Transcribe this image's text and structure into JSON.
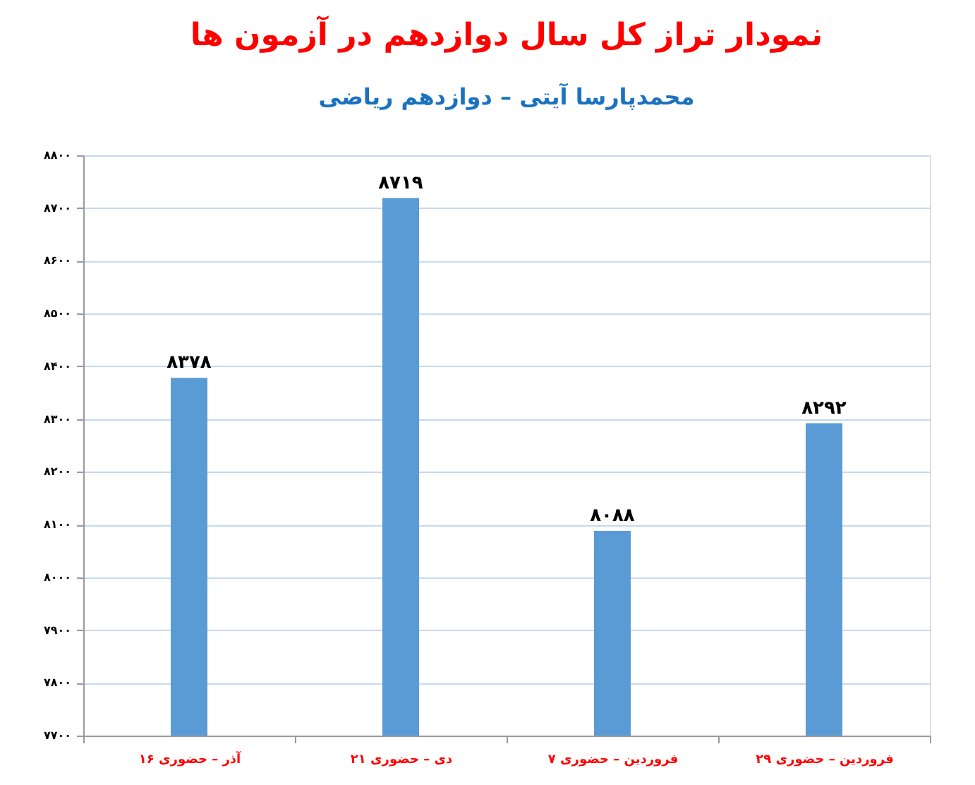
{
  "chart_data": {
    "type": "bar",
    "title": "نمودار تراز کل سال دوازدهم در آزمون ها",
    "subtitle": "محمدپارسا آیتی – دوازدهم ریاضی",
    "categories": [
      "۱۶ آذر – حضوری",
      "۲۱ دی – حضوری",
      "۷ فروردین – حضوری",
      "۲۹ فروردین – حضوری"
    ],
    "values": [
      8378,
      8719,
      8088,
      8292
    ],
    "color": "#5b9bd5",
    "value_labels": [
      "۸۳۷۸",
      "۸۷۱۹",
      "۸۰۸۸",
      "۸۲۹۲"
    ],
    "ylim": [
      7700,
      8800
    ],
    "yticks": [
      {
        "value": 7700,
        "label": "۷۷۰۰"
      },
      {
        "value": 7800,
        "label": "۷۸۰۰"
      },
      {
        "value": 7900,
        "label": "۷۹۰۰"
      },
      {
        "value": 8000,
        "label": "۸۰۰۰"
      },
      {
        "value": 8100,
        "label": "۸۱۰۰"
      },
      {
        "value": 8200,
        "label": "۸۲۰۰"
      },
      {
        "value": 8300,
        "label": "۸۳۰۰"
      },
      {
        "value": 8400,
        "label": "۸۴۰۰"
      },
      {
        "value": 8500,
        "label": "۸۵۰۰"
      },
      {
        "value": 8600,
        "label": "۸۶۰۰"
      },
      {
        "value": 8700,
        "label": "۸۷۰۰"
      },
      {
        "value": 8800,
        "label": "۸۸۰۰"
      }
    ],
    "grid": "y",
    "legend": false
  }
}
